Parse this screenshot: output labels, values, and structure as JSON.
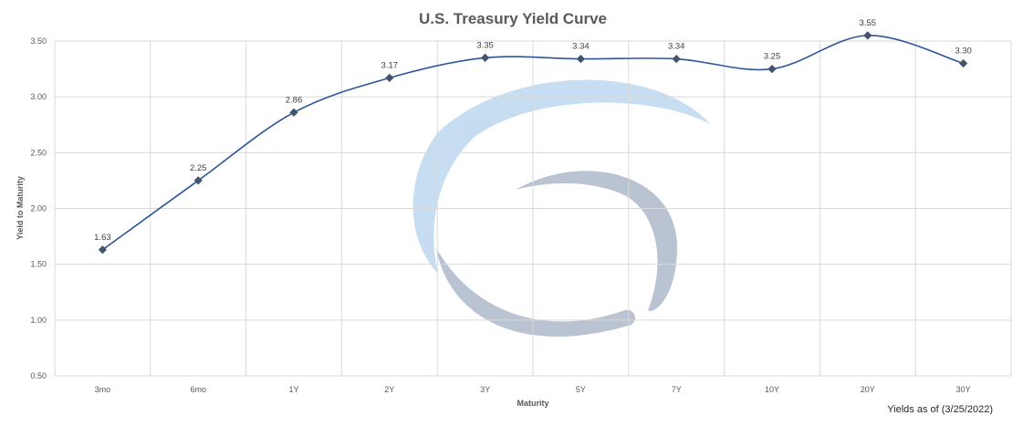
{
  "chart_data": {
    "type": "line",
    "title": "U.S. Treasury Yield Curve",
    "xlabel": "Maturity",
    "ylabel": "Yield to Maturity",
    "categories": [
      "3mo",
      "6mo",
      "1Y",
      "2Y",
      "3Y",
      "5Y",
      "7Y",
      "10Y",
      "20Y",
      "30Y"
    ],
    "series": [
      {
        "values": [
          1.63,
          2.25,
          2.86,
          3.17,
          3.35,
          3.34,
          3.34,
          3.25,
          3.55,
          3.3
        ]
      }
    ],
    "data_labels": [
      "1.63",
      "2.25",
      "2.86",
      "3.17",
      "3.35",
      "3.34",
      "3.34",
      "3.25",
      "3.55",
      "3.30"
    ],
    "ylim": [
      0.5,
      3.5
    ],
    "y_ticks": [
      "0.50",
      "1.00",
      "1.50",
      "2.00",
      "2.50",
      "3.00",
      "3.50"
    ],
    "grid": true,
    "line_style": "smooth",
    "marker": "diamond",
    "series_color": "#2E5597",
    "marker_color": "#44546A",
    "footnote": "Yields as of (3/25/2022)"
  },
  "watermark": {
    "kind": "logo",
    "colors": [
      "#BDD7EE",
      "#ADB9CA"
    ]
  }
}
